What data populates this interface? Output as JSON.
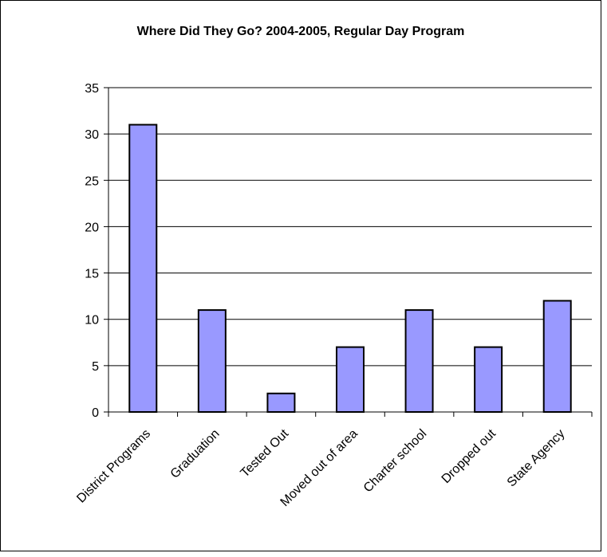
{
  "chart_data": {
    "type": "bar",
    "title": "Where Did They Go? 2004-2005, Regular Day Program",
    "xlabel": "",
    "ylabel": "",
    "categories": [
      "District Programs",
      "Graduation",
      "Tested Out",
      "Moved out of area",
      "Charter school",
      "Dropped out",
      "State Agency"
    ],
    "values": [
      31,
      11,
      2,
      7,
      11,
      7,
      12
    ],
    "ylim": [
      0,
      35
    ],
    "yticks": [
      "0",
      "5",
      "10",
      "15",
      "20",
      "25",
      "30",
      "35"
    ],
    "grid": true,
    "legend": "none",
    "colors": {
      "bar_fill": "#9999ff",
      "bar_stroke": "#000000",
      "grid": "#000000",
      "axis": "#000000"
    }
  }
}
